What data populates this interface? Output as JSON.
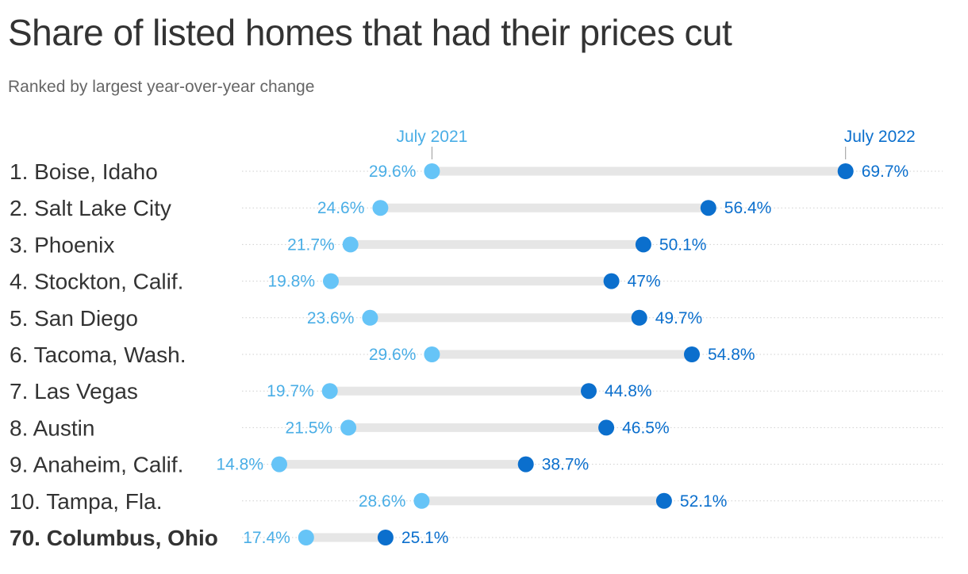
{
  "colors": {
    "july_2021": "#66c4f7",
    "july_2021_text": "#4aaee6",
    "july_2022": "#0b6fcd",
    "bar": "#e6e6e6",
    "dots": "#cfcfcf"
  },
  "chart_data": {
    "type": "dumbbell",
    "title": "Share of listed homes that had their prices cut",
    "subtitle": "Ranked by largest year-over-year change",
    "series": [
      {
        "name": "July 2021"
      },
      {
        "name": "July 2022"
      }
    ],
    "rows": [
      {
        "label": "1. Boise, Idaho",
        "start": 29.6,
        "end": 69.7,
        "start_label": "29.6%",
        "end_label": "69.7%",
        "bold": false
      },
      {
        "label": "2. Salt Lake City",
        "start": 24.6,
        "end": 56.4,
        "start_label": "24.6%",
        "end_label": "56.4%",
        "bold": false
      },
      {
        "label": "3. Phoenix",
        "start": 21.7,
        "end": 50.1,
        "start_label": "21.7%",
        "end_label": "50.1%",
        "bold": false
      },
      {
        "label": "4. Stockton, Calif.",
        "start": 19.8,
        "end": 47,
        "start_label": "19.8%",
        "end_label": "47%",
        "bold": false
      },
      {
        "label": "5. San Diego",
        "start": 23.6,
        "end": 49.7,
        "start_label": "23.6%",
        "end_label": "49.7%",
        "bold": false
      },
      {
        "label": "6. Tacoma, Wash.",
        "start": 29.6,
        "end": 54.8,
        "start_label": "29.6%",
        "end_label": "54.8%",
        "bold": false
      },
      {
        "label": "7. Las Vegas",
        "start": 19.7,
        "end": 44.8,
        "start_label": "19.7%",
        "end_label": "44.8%",
        "bold": false
      },
      {
        "label": "8. Austin",
        "start": 21.5,
        "end": 46.5,
        "start_label": "21.5%",
        "end_label": "46.5%",
        "bold": false
      },
      {
        "label": "9. Anaheim, Calif.",
        "start": 14.8,
        "end": 38.7,
        "start_label": "14.8%",
        "end_label": "38.7%",
        "bold": false
      },
      {
        "label": "10. Tampa, Fla.",
        "start": 28.6,
        "end": 52.1,
        "start_label": "28.6%",
        "end_label": "52.1%",
        "bold": false
      },
      {
        "label": "70. Columbus, Ohio",
        "start": 17.4,
        "end": 25.1,
        "start_label": "17.4%",
        "end_label": "25.1%",
        "bold": true
      }
    ]
  }
}
